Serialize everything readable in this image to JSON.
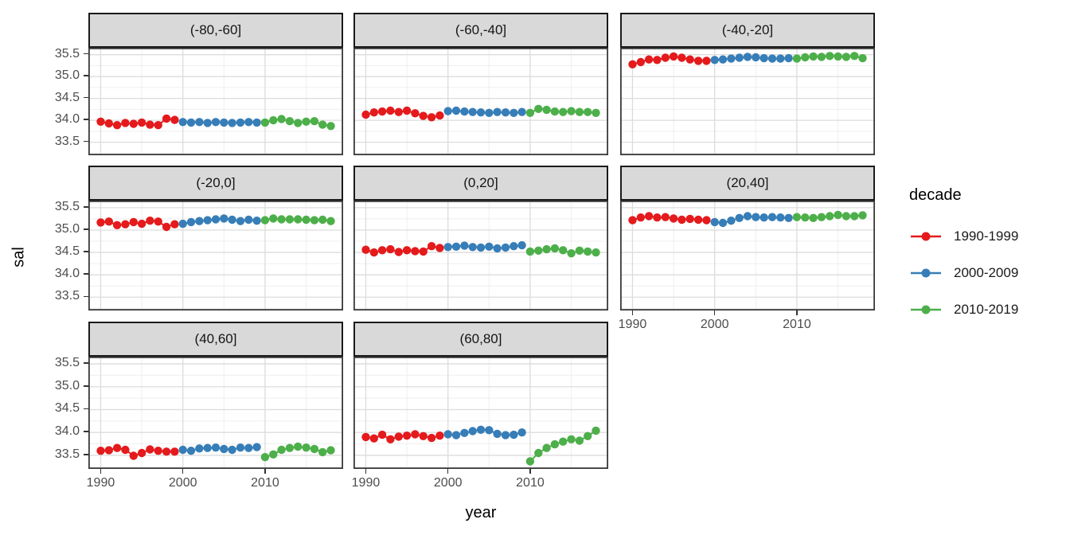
{
  "figure": {
    "ylabel": "sal",
    "xlabel": "year"
  },
  "legend": {
    "title": "decade",
    "items": [
      {
        "label": "1990-1999",
        "color": "#E41A1C"
      },
      {
        "label": "2000-2009",
        "color": "#377EB8"
      },
      {
        "label": "2010-2019",
        "color": "#4DAF4A"
      }
    ]
  },
  "chart_data": {
    "type": "scatter",
    "title": "",
    "xlabel": "year",
    "ylabel": "sal",
    "legend_title": "decade",
    "legend_position": "right",
    "grid": true,
    "xlim": [
      1988.6,
      2019.4
    ],
    "ylim": [
      33.22,
      35.64
    ],
    "x_major_ticks": [
      1990,
      2000,
      2010
    ],
    "x_tick_labels": [
      "1990",
      "2000",
      "2010"
    ],
    "x_minor_ticks": [
      1995,
      2005,
      2015
    ],
    "y_major_ticks": [
      33.5,
      34.0,
      34.5,
      35.0,
      35.5
    ],
    "y_tick_labels": [
      "33.5",
      "34.0",
      "34.5",
      "35.0",
      "35.5"
    ],
    "y_minor_ticks": [
      33.25,
      33.75,
      34.25,
      34.75,
      35.25
    ],
    "decades": [
      {
        "name": "1990-1999",
        "color": "#E41A1C",
        "start_year": 1990
      },
      {
        "name": "2000-2009",
        "color": "#377EB8",
        "start_year": 2000
      },
      {
        "name": "2010-2019",
        "color": "#4DAF4A",
        "start_year": 2010
      }
    ],
    "facets": [
      {
        "label": "(-80,-60]",
        "series": [
          [
            33.97,
            33.93,
            33.89,
            33.94,
            33.92,
            33.95,
            33.9,
            33.89,
            34.04,
            34.01
          ],
          [
            33.96,
            33.95,
            33.96,
            33.94,
            33.96,
            33.95,
            33.94,
            33.95,
            33.96,
            33.95
          ],
          [
            33.95,
            34.0,
            34.03,
            33.98,
            33.94,
            33.97,
            33.98,
            33.9,
            33.87
          ]
        ]
      },
      {
        "label": "(-60,-40]",
        "series": [
          [
            34.13,
            34.18,
            34.2,
            34.22,
            34.19,
            34.22,
            34.16,
            34.1,
            34.07,
            34.11
          ],
          [
            34.21,
            34.22,
            34.2,
            34.19,
            34.18,
            34.17,
            34.19,
            34.18,
            34.17,
            34.19
          ],
          [
            34.17,
            34.26,
            34.24,
            34.2,
            34.19,
            34.21,
            34.19,
            34.19,
            34.17
          ]
        ]
      },
      {
        "label": "(-40,-20]",
        "series": [
          [
            35.28,
            35.33,
            35.39,
            35.38,
            35.43,
            35.46,
            35.43,
            35.39,
            35.36,
            35.36
          ],
          [
            35.38,
            35.39,
            35.41,
            35.43,
            35.45,
            35.44,
            35.42,
            35.41,
            35.41,
            35.42
          ],
          [
            35.41,
            35.44,
            35.46,
            35.45,
            35.47,
            35.46,
            35.45,
            35.47,
            35.42
          ]
        ]
      },
      {
        "label": "(-20,0]",
        "series": [
          [
            35.17,
            35.19,
            35.11,
            35.13,
            35.18,
            35.14,
            35.21,
            35.19,
            35.07,
            35.13
          ],
          [
            35.14,
            35.18,
            35.2,
            35.22,
            35.24,
            35.26,
            35.23,
            35.2,
            35.23,
            35.21
          ],
          [
            35.22,
            35.26,
            35.24,
            35.24,
            35.24,
            35.23,
            35.22,
            35.23,
            35.2
          ]
        ]
      },
      {
        "label": "(0,20]",
        "series": [
          [
            34.56,
            34.5,
            34.55,
            34.57,
            34.51,
            34.55,
            34.53,
            34.52,
            34.64,
            34.6
          ],
          [
            34.62,
            34.63,
            34.65,
            34.62,
            34.61,
            34.63,
            34.59,
            34.61,
            34.64,
            34.66
          ],
          [
            34.52,
            34.54,
            34.57,
            34.59,
            34.55,
            34.48,
            34.54,
            34.52,
            34.5
          ]
        ]
      },
      {
        "label": "(20,40]",
        "series": [
          [
            35.22,
            35.28,
            35.31,
            35.28,
            35.29,
            35.26,
            35.23,
            35.25,
            35.23,
            35.22
          ],
          [
            35.18,
            35.16,
            35.21,
            35.27,
            35.31,
            35.29,
            35.28,
            35.29,
            35.28,
            35.27
          ],
          [
            35.29,
            35.28,
            35.27,
            35.29,
            35.31,
            35.34,
            35.31,
            35.31,
            35.33
          ]
        ]
      },
      {
        "label": "(40,60]",
        "series": [
          [
            33.6,
            33.61,
            33.66,
            33.62,
            33.49,
            33.55,
            33.63,
            33.6,
            33.58,
            33.58
          ],
          [
            33.62,
            33.6,
            33.65,
            33.66,
            33.67,
            33.64,
            33.62,
            33.67,
            33.66,
            33.68
          ],
          [
            33.46,
            33.52,
            33.62,
            33.66,
            33.69,
            33.67,
            33.64,
            33.57,
            33.61
          ]
        ]
      },
      {
        "label": "(60,80]",
        "series": [
          [
            33.9,
            33.87,
            33.95,
            33.85,
            33.91,
            33.93,
            33.96,
            33.92,
            33.88,
            33.93
          ],
          [
            33.96,
            33.94,
            33.99,
            34.03,
            34.06,
            34.05,
            33.97,
            33.94,
            33.95,
            34.0
          ],
          [
            33.37,
            33.55,
            33.66,
            33.74,
            33.8,
            33.85,
            33.82,
            33.92,
            34.04
          ]
        ]
      }
    ],
    "style": {
      "panel_bg": "#ffffff",
      "strip_bg": "#d9d9d9",
      "grid_major": "#dcdcdc",
      "grid_minor": "#efefef",
      "panel_border": "#3a3a3a",
      "tick_color": "#333333",
      "tick_label_color": "#4d4d4d"
    }
  }
}
